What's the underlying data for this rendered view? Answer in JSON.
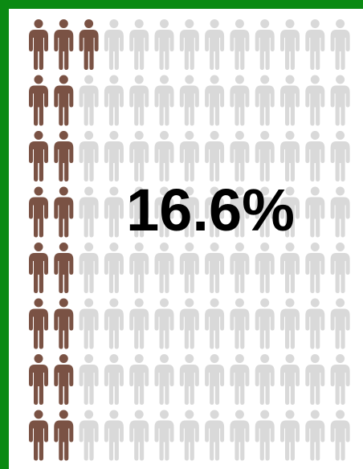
{
  "chart_data": {
    "type": "pictograph",
    "value": 16.6,
    "value_label": "16.6%",
    "colors": {
      "filled": "#7a5244",
      "empty": "#d9d9d9"
    }
  }
}
